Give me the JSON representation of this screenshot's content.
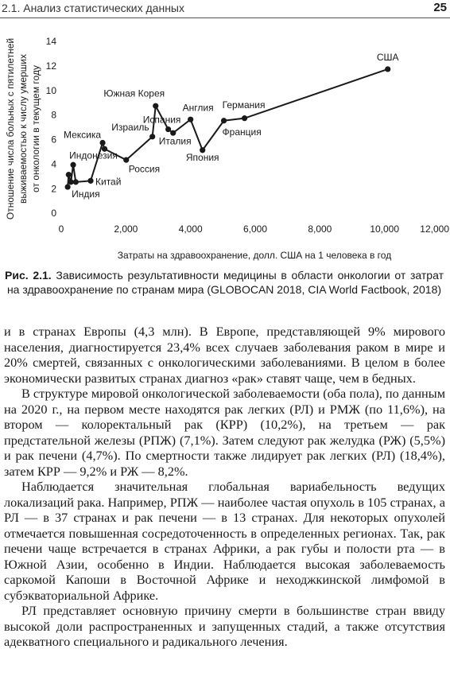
{
  "header": {
    "title": "2.1. Анализ статистических данных",
    "page": "25"
  },
  "chart_data": {
    "type": "line",
    "xlabel": "Затраты на здравоохранение, долл. США на 1 человека в год",
    "ylabel": [
      "Отношение числа больных с пятилетней",
      "выживаемостью к числу умерших",
      "от онкологии в текущем году"
    ],
    "x": [
      200,
      230,
      300,
      370,
      450,
      910,
      1280,
      1340,
      2010,
      2820,
      2920,
      3310,
      3460,
      4000,
      4370,
      5030,
      5670,
      10100
    ],
    "series": [
      {
        "color": "#1a1a1a",
        "values": [
          2.2,
          3.2,
          2.6,
          4.0,
          2.6,
          2.7,
          5.8,
          5.3,
          4.4,
          6.3,
          8.8,
          6.9,
          6.6,
          7.7,
          5.2,
          7.6,
          7.8,
          11.8
        ],
        "point_labels": [
          "Индия",
          null,
          null,
          null,
          null,
          "Китай",
          "Мексика",
          "Индонезия",
          "Россия",
          "Израиль",
          "Южная Корея",
          "Испания",
          "Италия",
          "Англия",
          "Япония",
          "Франция",
          "Германия",
          "США"
        ]
      }
    ],
    "xlim": [
      0,
      12000
    ],
    "ylim": [
      0,
      14
    ],
    "xticks": [
      0,
      {
        "value": 2000,
        "label": "2,000"
      },
      {
        "value": 4000,
        "label": "4,000"
      },
      {
        "value": 6000,
        "label": "6,000"
      },
      {
        "value": 8000,
        "label": "8,000"
      },
      {
        "value": 10000,
        "label": "10,000"
      },
      {
        "value": 12000,
        "label": "12,000"
      }
    ],
    "yticks": [
      0,
      2,
      4,
      6,
      8,
      10,
      12,
      14
    ]
  },
  "caption": {
    "label": "Рис. 2.1.",
    "text": "Зависимость результативности медицины в области онкологии от затрат на здравоохранение по странам мира (GLOBOCAN 2018, CIA World Factbook, 2018)"
  },
  "paragraphs": [
    "и в странах Европы (4,3 млн). В Европе, представляющей 9% мирового населения, диагностируется 23,4% всех случаев заболевания раком в мире и 20% смертей, связанных с онкологическими заболеваниями. В целом в более экономически развитых странах диагноз «рак» ставят чаще, чем в бедных.",
    "В структуре мировой онкологической заболеваемости (оба пола), по данным на 2020 г., на первом месте находятся рак легких (РЛ) и РМЖ (по 11,6%), на втором — колоректальный рак (КРР) (10,2%), на третьем — рак предстательной железы (РПЖ) (7,1%). Затем следуют рак желудка (РЖ) (5,5%) и рак печени (4,7%). По смертности также лидирует рак легких (РЛ) (18,4%), затем КРР — 9,2% и РЖ — 8,2%.",
    "Наблюдается значительная глобальная вариабельность ведущих локализаций рака. Например, РПЖ — наиболее частая опухоль в 105 странах, а РЛ — в 37 странах и рак печени — в 13 странах. Для некоторых опухолей отмечается повышенная сосредоточенность в определенных регионах. Так, рак печени чаще встречается в странах Африки, а рак губы и полости рта — в Южной Азии, особенно в Индии. Наблюдается высокая заболеваемость саркомой Капоши в Восточной Африке и неходжкинской лимфомой в субэкваториальной Африке.",
    "РЛ представляет основную причину смерти в большинстве стран ввиду высокой доли распространенных и запущенных стадий, а также отсутствия адекватного специального и радикального лечения."
  ]
}
